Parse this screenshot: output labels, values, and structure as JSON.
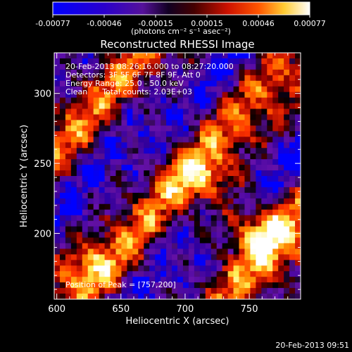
{
  "colorbar": {
    "tick_labels": [
      "-0.00077",
      "-0.00046",
      "-0.00015",
      "0.00015",
      "0.00046",
      "0.00077"
    ],
    "units_line": "(photons cm⁻² s⁻¹ asec⁻²)",
    "range": [
      -0.00077,
      0.00077
    ]
  },
  "chart_data": {
    "type": "heatmap",
    "title": "Reconstructed RHESSI Image",
    "xlabel": "Heliocentric X (arcsec)",
    "ylabel": "Heliocentric Y (arcsec)",
    "xlim": [
      598,
      790
    ],
    "ylim": [
      153,
      329
    ],
    "xticks": [
      600,
      650,
      700,
      750
    ],
    "yticks": [
      200,
      250,
      300
    ],
    "annotations": {
      "time_range": "20-Feb-2013 08:26:16.000 to 08:27:20.000",
      "detectors": "Detectors: 3F 5F 6F 7F 8F 9F, Att 0",
      "energy_range": "Energy Range: 25.0 - 50.0 keV",
      "clean_counts": "Clean      Total counts: 2.03E+03",
      "peak": "Position of Peak = [757,200]"
    },
    "peak_position": [
      757,
      200
    ],
    "colormap_stops": [
      "#0000ff",
      "#330099",
      "#6611aa",
      "#000000",
      "#990000",
      "#ff3300",
      "#ff8800",
      "#ffee55",
      "#ffffff"
    ]
  },
  "footer": {
    "timestamp": "20-Feb-2013 09:51"
  }
}
